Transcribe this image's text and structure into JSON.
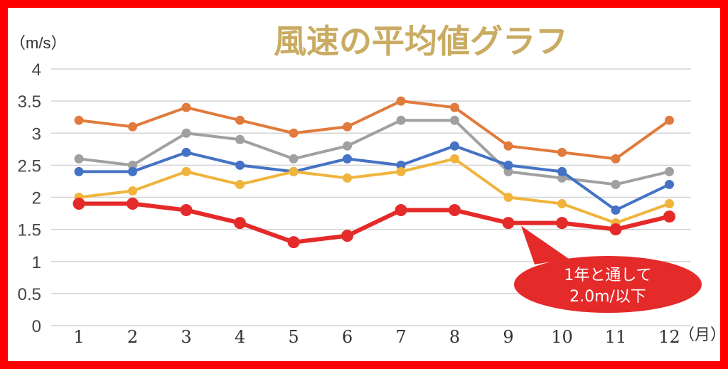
{
  "chart_data": {
    "type": "line",
    "title": "風速の平均値グラフ",
    "y_unit_label": "（m/s）",
    "x_unit_label": "（月）",
    "ylim": [
      0,
      4
    ],
    "y_ticks": [
      "0",
      "0.5",
      "1",
      "1.5",
      "2",
      "2.5",
      "3",
      "3.5",
      "4"
    ],
    "grid": true,
    "categories": [
      "1",
      "2",
      "3",
      "4",
      "5",
      "6",
      "7",
      "8",
      "9",
      "10",
      "11",
      "12"
    ],
    "series": [
      {
        "color": "#e07b3c",
        "values": [
          3.2,
          3.1,
          3.4,
          3.2,
          3.0,
          3.1,
          3.5,
          3.4,
          2.8,
          2.7,
          2.6,
          3.2
        ]
      },
      {
        "color": "#a0a0a0",
        "values": [
          2.6,
          2.5,
          3.0,
          2.9,
          2.6,
          2.8,
          3.2,
          3.2,
          2.4,
          2.3,
          2.2,
          2.4
        ]
      },
      {
        "color": "#4472c4",
        "values": [
          2.4,
          2.4,
          2.7,
          2.5,
          2.4,
          2.6,
          2.5,
          2.8,
          2.5,
          2.4,
          1.8,
          2.2
        ]
      },
      {
        "color": "#f0b43c",
        "values": [
          2.0,
          2.1,
          2.4,
          2.2,
          2.4,
          2.3,
          2.4,
          2.6,
          2.0,
          1.9,
          1.6,
          1.9
        ]
      },
      {
        "color": "#e52a2a",
        "highlight": true,
        "values": [
          1.9,
          1.9,
          1.8,
          1.6,
          1.3,
          1.4,
          1.8,
          1.8,
          1.6,
          1.6,
          1.5,
          1.7
        ]
      }
    ],
    "annotation": {
      "lines": [
        "1年と通して",
        "2.0m/以下"
      ],
      "color": "#e52a2a"
    }
  }
}
